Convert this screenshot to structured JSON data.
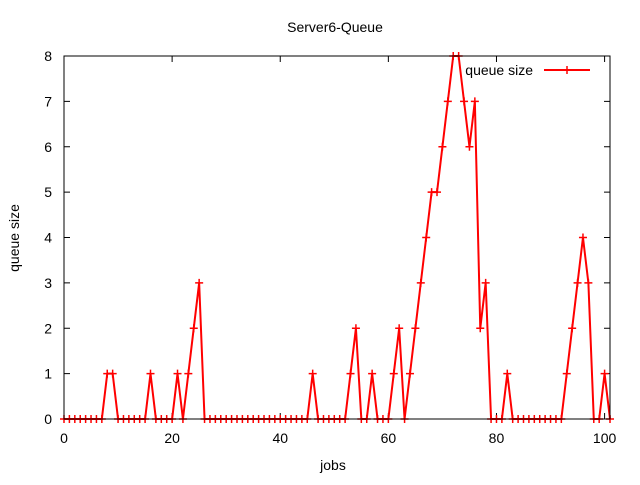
{
  "chart_data": {
    "type": "line",
    "title": "Server6-Queue",
    "xlabel": "jobs",
    "ylabel": "queue size",
    "xlim": [
      0,
      101
    ],
    "ylim": [
      0,
      8
    ],
    "x_ticks": [
      0,
      20,
      40,
      60,
      80,
      100
    ],
    "y_ticks": [
      0,
      1,
      2,
      3,
      4,
      5,
      6,
      7,
      8
    ],
    "grid": false,
    "legend_position": "top-right",
    "series": [
      {
        "name": "queue size",
        "color": "#ff0000",
        "marker": "plus",
        "x": [
          0,
          1,
          2,
          3,
          4,
          5,
          6,
          7,
          8,
          9,
          10,
          11,
          12,
          13,
          14,
          15,
          16,
          17,
          18,
          19,
          20,
          21,
          22,
          23,
          24,
          25,
          26,
          27,
          28,
          29,
          30,
          31,
          32,
          33,
          34,
          35,
          36,
          37,
          38,
          39,
          40,
          41,
          42,
          43,
          44,
          45,
          46,
          47,
          48,
          49,
          50,
          51,
          52,
          53,
          54,
          55,
          56,
          57,
          58,
          59,
          60,
          61,
          62,
          63,
          64,
          65,
          66,
          67,
          68,
          69,
          70,
          71,
          72,
          73,
          74,
          75,
          76,
          77,
          78,
          79,
          80,
          81,
          82,
          83,
          84,
          85,
          86,
          87,
          88,
          89,
          90,
          91,
          92,
          93,
          94,
          95,
          96,
          97,
          98,
          99,
          100,
          101
        ],
        "values": [
          0,
          0,
          0,
          0,
          0,
          0,
          0,
          0,
          1,
          1,
          0,
          0,
          0,
          0,
          0,
          0,
          1,
          0,
          0,
          0,
          0,
          1,
          0,
          1,
          2,
          3,
          0,
          0,
          0,
          0,
          0,
          0,
          0,
          0,
          0,
          0,
          0,
          0,
          0,
          0,
          0,
          0,
          0,
          0,
          0,
          0,
          1,
          0,
          0,
          0,
          0,
          0,
          0,
          1,
          2,
          0,
          0,
          1,
          0,
          0,
          0,
          1,
          2,
          0,
          1,
          2,
          3,
          4,
          5,
          5,
          6,
          7,
          8,
          8,
          7,
          6,
          7,
          2,
          3,
          0,
          0,
          0,
          1,
          0,
          0,
          0,
          0,
          0,
          0,
          0,
          0,
          0,
          0,
          1,
          2,
          3,
          4,
          3,
          0,
          0,
          1,
          0
        ]
      }
    ]
  }
}
